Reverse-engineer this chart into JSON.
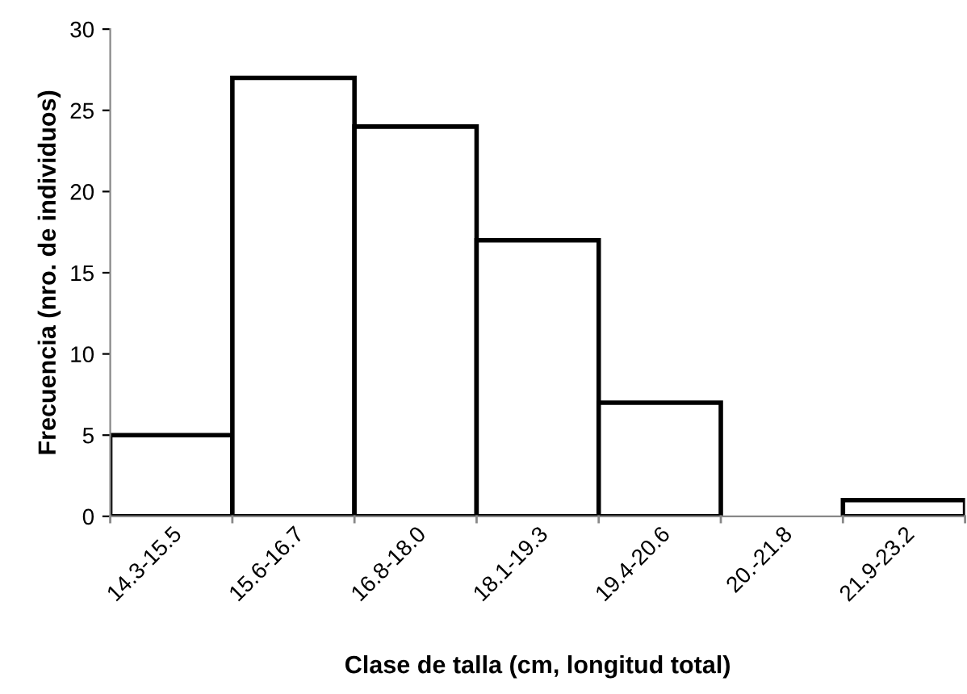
{
  "chart_data": {
    "type": "bar",
    "xlabel": "Clase de talla (cm, longitud total)",
    "ylabel": "Frecuencia (nro. de individuos)",
    "categories": [
      "14.3-15.5",
      "15.6-16.7",
      "16.8-18.0",
      "18.1-19.3",
      "19.4-20.6",
      "20.-21.8",
      "21.9-23.2"
    ],
    "values": [
      5,
      27,
      24,
      17,
      7,
      0,
      1
    ],
    "color": "#ffffff",
    "ylim": [
      0,
      30
    ],
    "yticks": [
      0,
      5,
      10,
      15,
      20,
      25,
      30
    ],
    "grid": false,
    "legend": false
  }
}
